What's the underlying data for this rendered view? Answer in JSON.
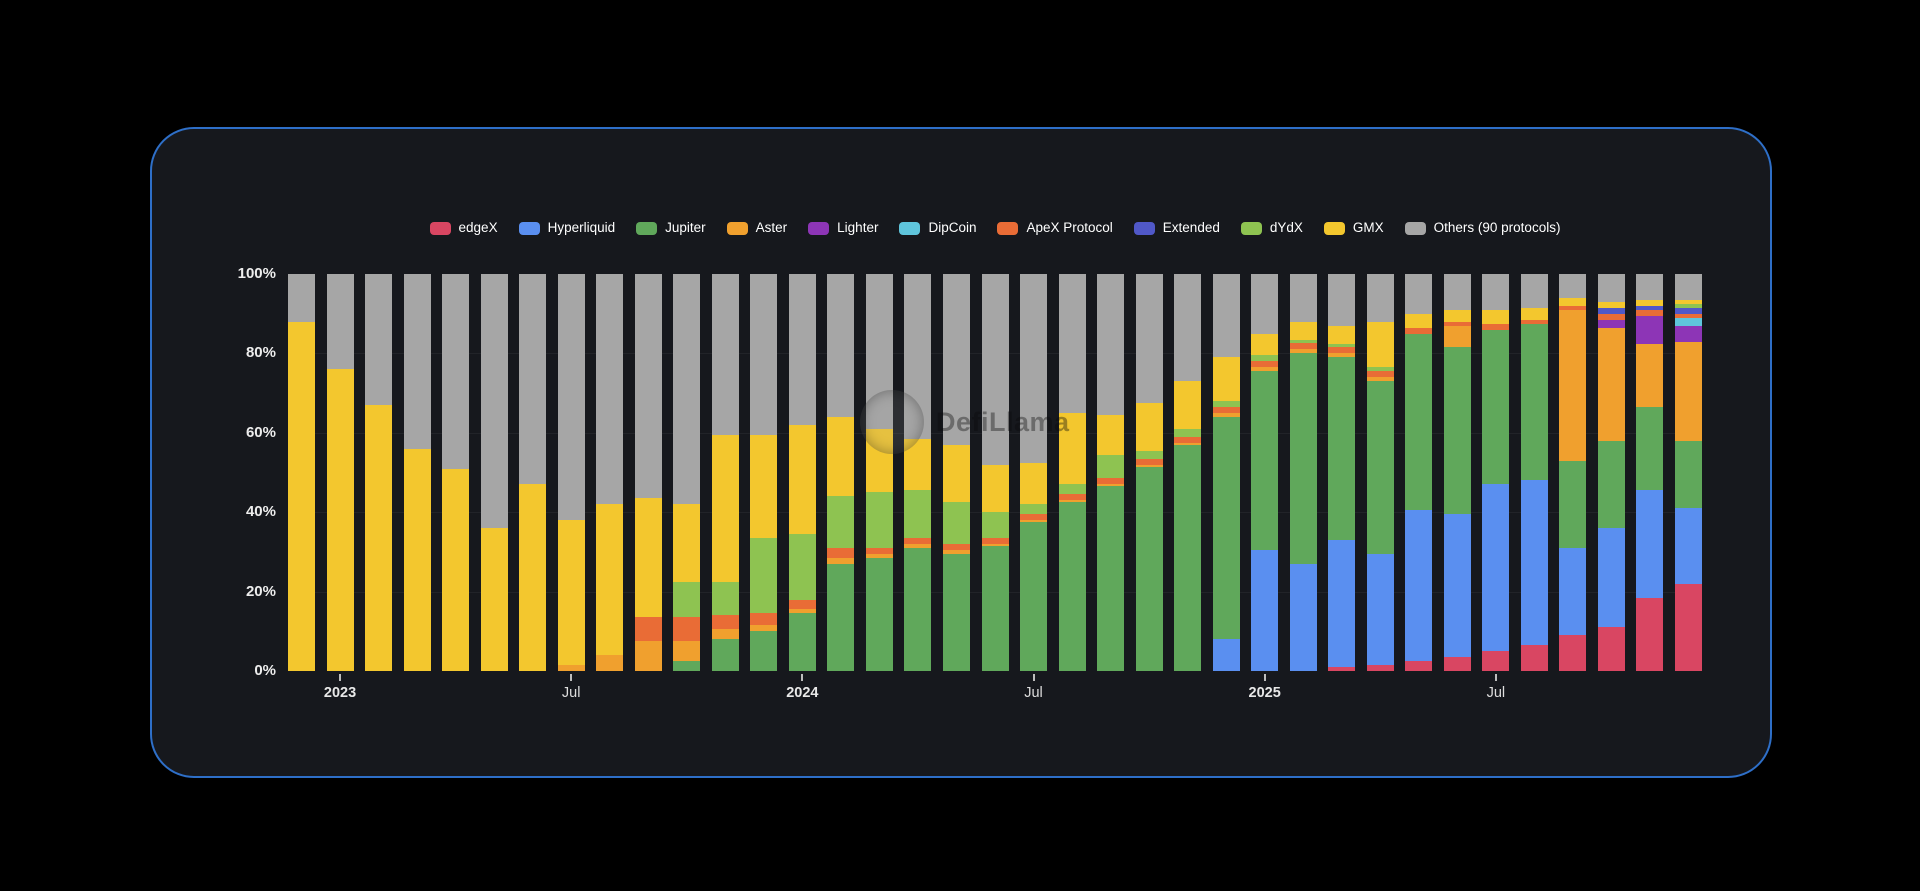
{
  "page": {
    "background": "#000000"
  },
  "card": {
    "background": "#16181d",
    "border_color": "#2e6fc8"
  },
  "watermark": {
    "text": "DefiLlama"
  },
  "legend": {
    "items": [
      {
        "label": "edgeX",
        "color": "#d94662"
      },
      {
        "label": "Hyperliquid",
        "color": "#5a8ff0"
      },
      {
        "label": "Jupiter",
        "color": "#60a85b"
      },
      {
        "label": "Aster",
        "color": "#f0a02e"
      },
      {
        "label": "Lighter",
        "color": "#8d35b6"
      },
      {
        "label": "DipCoin",
        "color": "#5fc5dc"
      },
      {
        "label": "ApeX Protocol",
        "color": "#e96c36"
      },
      {
        "label": "Extended",
        "color": "#5058c8"
      },
      {
        "label": "dYdX",
        "color": "#8ec351"
      },
      {
        "label": "GMX",
        "color": "#f3c72e"
      },
      {
        "label": "Others (90 protocols)",
        "color": "#a6a6a6"
      }
    ]
  },
  "chart_data": {
    "type": "bar",
    "stacked": true,
    "stack_unit": "percent",
    "title": "",
    "xlabel": "",
    "ylabel": "",
    "ylim": [
      0,
      100
    ],
    "grid": "faint-horizontal",
    "legend_position": "top-center",
    "y_ticks": [
      "100%",
      "80%",
      "60%",
      "40%",
      "20%",
      "0%"
    ],
    "x_tick_labels": [
      {
        "index": 1,
        "label": "2023",
        "style": "year"
      },
      {
        "index": 7,
        "label": "Jul",
        "style": "month"
      },
      {
        "index": 13,
        "label": "2024",
        "style": "year"
      },
      {
        "index": 19,
        "label": "Jul",
        "style": "month"
      },
      {
        "index": 25,
        "label": "2025",
        "style": "year"
      },
      {
        "index": 31,
        "label": "Jul",
        "style": "month"
      }
    ],
    "categories": [
      "Dec 2022",
      "Jan 2023",
      "Feb 2023",
      "Mar 2023",
      "Apr 2023",
      "May 2023",
      "Jun 2023",
      "Jul 2023",
      "Aug 2023",
      "Sep 2023",
      "Oct 2023",
      "Nov 2023",
      "Dec 2023",
      "Jan 2024",
      "Feb 2024",
      "Mar 2024",
      "Apr 2024",
      "May 2024",
      "Jun 2024",
      "Jul 2024",
      "Aug 2024",
      "Sep 2024",
      "Oct 2024",
      "Nov 2024",
      "Dec 2024",
      "Jan 2025",
      "Feb 2025",
      "Mar 2025",
      "Apr 2025",
      "May 2025",
      "Jun 2025",
      "Jul 2025",
      "Aug 2025",
      "Sep 2025",
      "Oct 2025",
      "Nov 2025",
      "Dec 2025"
    ],
    "series": [
      {
        "name": "edgeX",
        "color": "#d94662",
        "values": [
          0,
          0,
          0,
          0,
          0,
          0,
          0,
          0,
          0,
          0,
          0,
          0,
          0,
          0,
          0,
          0,
          0,
          0,
          0,
          0,
          0,
          0,
          0,
          0,
          0,
          0,
          0,
          1,
          1.5,
          2.5,
          3.5,
          5,
          6.5,
          9,
          11,
          18.5,
          22
        ]
      },
      {
        "name": "Hyperliquid",
        "color": "#5a8ff0",
        "values": [
          0,
          0,
          0,
          0,
          0,
          0,
          0,
          0,
          0,
          0,
          0,
          0,
          0,
          0,
          0,
          0,
          0,
          0,
          0,
          0,
          0,
          0,
          0,
          0,
          8,
          30.5,
          27,
          32,
          28,
          38,
          36,
          42,
          41.5,
          22,
          25,
          27,
          19
        ]
      },
      {
        "name": "Jupiter",
        "color": "#60a85b",
        "values": [
          0,
          0,
          0,
          0,
          0,
          0,
          0,
          0,
          0,
          0,
          2.5,
          8,
          10,
          14.5,
          27,
          28.5,
          31,
          29.5,
          31.5,
          37.5,
          42.5,
          46.5,
          51.5,
          57,
          56,
          45,
          53,
          46,
          43.5,
          44.5,
          42,
          39,
          39.5,
          22,
          22,
          21,
          17
        ]
      },
      {
        "name": "Aster",
        "color": "#f0a02e",
        "values": [
          0,
          0,
          0,
          0,
          0,
          0,
          0,
          1.5,
          4,
          7.5,
          5,
          2.5,
          1.5,
          1,
          1.5,
          1,
          1,
          1,
          0.5,
          0.5,
          0.5,
          0.5,
          0.5,
          0.5,
          1,
          1,
          1,
          1,
          1,
          0,
          5.5,
          0,
          0,
          38,
          28.5,
          16,
          25
        ]
      },
      {
        "name": "Lighter",
        "color": "#8d35b6",
        "values": [
          0,
          0,
          0,
          0,
          0,
          0,
          0,
          0,
          0,
          0,
          0,
          0,
          0,
          0,
          0,
          0,
          0,
          0,
          0,
          0,
          0,
          0,
          0,
          0,
          0,
          0,
          0,
          0,
          0,
          0,
          0,
          0,
          0,
          0,
          2,
          7,
          4
        ]
      },
      {
        "name": "DipCoin",
        "color": "#5fc5dc",
        "values": [
          0,
          0,
          0,
          0,
          0,
          0,
          0,
          0,
          0,
          0,
          0,
          0,
          0,
          0,
          0,
          0,
          0,
          0,
          0,
          0,
          0,
          0,
          0,
          0,
          0,
          0,
          0,
          0,
          0,
          0,
          0,
          0,
          0,
          0,
          0,
          0,
          2
        ]
      },
      {
        "name": "ApeX Protocol",
        "color": "#e96c36",
        "values": [
          0,
          0,
          0,
          0,
          0,
          0,
          0,
          0,
          0,
          6,
          6,
          3.5,
          3,
          2.5,
          2.5,
          1.5,
          1.5,
          1.5,
          1.5,
          1.5,
          1.5,
          1.5,
          1.5,
          1.5,
          1.5,
          1.5,
          1.5,
          1.5,
          1.5,
          1.5,
          1,
          1.5,
          1,
          1,
          1.5,
          1.5,
          1
        ]
      },
      {
        "name": "Extended",
        "color": "#5058c8",
        "values": [
          0,
          0,
          0,
          0,
          0,
          0,
          0,
          0,
          0,
          0,
          0,
          0,
          0,
          0,
          0,
          0,
          0,
          0,
          0,
          0,
          0,
          0,
          0,
          0,
          0,
          0,
          0,
          0,
          0,
          0,
          0,
          0,
          0,
          0,
          1.5,
          1,
          1.5
        ]
      },
      {
        "name": "dYdX",
        "color": "#8ec351",
        "values": [
          0,
          0,
          0,
          0,
          0,
          0,
          0,
          0,
          0,
          0,
          9,
          8.5,
          19,
          16.5,
          13,
          14,
          12,
          10.5,
          6.5,
          2.5,
          2.5,
          6,
          2,
          2,
          1.5,
          1.5,
          1,
          1,
          1,
          0,
          0,
          0,
          0,
          0,
          0,
          0,
          1
        ]
      },
      {
        "name": "GMX",
        "color": "#f3c72e",
        "values": [
          88,
          76,
          67,
          56,
          51,
          36,
          47,
          36.5,
          38,
          30,
          19.5,
          37,
          26,
          27.5,
          20,
          16,
          13,
          14.5,
          12,
          10.5,
          18,
          10,
          12,
          12,
          11,
          5.5,
          4.5,
          4.5,
          11.5,
          3.5,
          3,
          3.5,
          3,
          2,
          1.5,
          1.5,
          1
        ]
      },
      {
        "name": "Others (90 protocols)",
        "color": "#a6a6a6",
        "values": [
          12,
          24,
          33,
          44,
          49,
          64,
          53,
          62,
          58,
          56.5,
          58,
          40.5,
          40.5,
          38,
          36,
          39,
          41.5,
          43,
          48,
          47.5,
          35,
          35.5,
          32.5,
          27,
          21,
          15,
          12,
          13,
          12,
          10,
          9,
          9,
          8.5,
          6,
          7,
          6.5,
          6.5
        ]
      }
    ]
  }
}
